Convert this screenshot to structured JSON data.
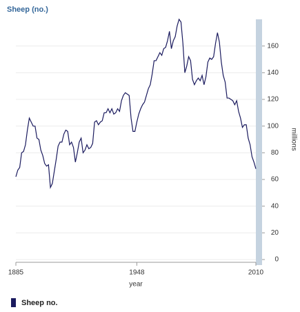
{
  "chart_data": {
    "type": "line",
    "title": "Sheep (no.)",
    "y_label": "millions",
    "x_label": "year",
    "x": [
      1885,
      1886,
      1887,
      1888,
      1889,
      1890,
      1891,
      1892,
      1893,
      1894,
      1895,
      1896,
      1897,
      1898,
      1899,
      1900,
      1901,
      1902,
      1903,
      1904,
      1905,
      1906,
      1907,
      1908,
      1909,
      1910,
      1911,
      1912,
      1913,
      1914,
      1915,
      1916,
      1917,
      1918,
      1919,
      1920,
      1921,
      1922,
      1923,
      1924,
      1925,
      1926,
      1927,
      1928,
      1929,
      1930,
      1931,
      1932,
      1933,
      1934,
      1935,
      1936,
      1937,
      1938,
      1939,
      1940,
      1941,
      1942,
      1943,
      1944,
      1945,
      1946,
      1947,
      1948,
      1949,
      1950,
      1951,
      1952,
      1953,
      1954,
      1955,
      1956,
      1957,
      1958,
      1959,
      1960,
      1961,
      1962,
      1963,
      1964,
      1965,
      1966,
      1967,
      1968,
      1969,
      1970,
      1971,
      1972,
      1973,
      1974,
      1975,
      1976,
      1977,
      1978,
      1979,
      1980,
      1981,
      1982,
      1983,
      1984,
      1985,
      1986,
      1987,
      1988,
      1989,
      1990,
      1991,
      1992,
      1993,
      1994,
      1995,
      1996,
      1997,
      1998,
      1999,
      2000,
      2001,
      2002,
      2003,
      2004,
      2005,
      2006,
      2007,
      2008,
      2009,
      2010
    ],
    "series": [
      {
        "name": "Sheep no.",
        "color": "#1a1a5e",
        "values": [
          62,
          67,
          69,
          80,
          81,
          86,
          97,
          106,
          103,
          100,
          100,
          91,
          90,
          82,
          78,
          72,
          70,
          71,
          54,
          57,
          66,
          75,
          85,
          88,
          88,
          94,
          97,
          96,
          86,
          88,
          84,
          73,
          80,
          88,
          91,
          80,
          82,
          86,
          83,
          84,
          87,
          103,
          104,
          101,
          103,
          104,
          110,
          110,
          113,
          110,
          113,
          109,
          110,
          113,
          111,
          119,
          123,
          125,
          124,
          123,
          106,
          96,
          96,
          103,
          109,
          113,
          116,
          118,
          123,
          128,
          131,
          139,
          149,
          149,
          152,
          155,
          153,
          158,
          159,
          164,
          171,
          158,
          164,
          167,
          175,
          180,
          178,
          162,
          140,
          145,
          152,
          149,
          135,
          131,
          134,
          136,
          134,
          138,
          131,
          137,
          148,
          151,
          150,
          152,
          162,
          170,
          163,
          148,
          138,
          133,
          121,
          121,
          120,
          119,
          116,
          119,
          111,
          106,
          99,
          101,
          101,
          91,
          86,
          77,
          73,
          68
        ]
      }
    ],
    "xlim": [
      1885,
      2010
    ],
    "xticks": [
      1885,
      1948,
      2010
    ],
    "ylim": [
      0,
      180
    ],
    "yticks": [
      0,
      20,
      40,
      60,
      80,
      100,
      120,
      140,
      160
    ],
    "grid": true
  }
}
